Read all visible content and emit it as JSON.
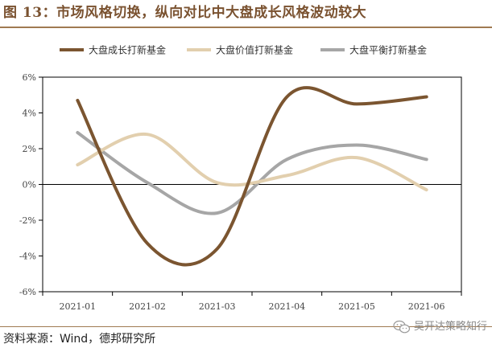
{
  "header": {
    "title": "图 13：市场风格切换，纵向对比中大盘成长风格波动较大"
  },
  "footer": {
    "source": "资料来源：Wind，德邦研究所",
    "watermark_text": "吴开达策略知行"
  },
  "chart_data": {
    "type": "line",
    "title": "",
    "xlabel": "",
    "ylabel": "",
    "categories": [
      "2021-01",
      "2021-02",
      "2021-03",
      "2021-04",
      "2021-05",
      "2021-06"
    ],
    "ylim": [
      -6,
      6
    ],
    "yticks": [
      6,
      4,
      2,
      0,
      -2,
      -4,
      -6
    ],
    "ytick_labels": [
      "6%",
      "4%",
      "2%",
      "0%",
      "-2%",
      "-4%",
      "-6%"
    ],
    "y_unit": "%",
    "smooth": true,
    "legend_position": "top",
    "grid": false,
    "series": [
      {
        "name": "大盘成长打新基金",
        "color": "#7b5530",
        "values": [
          4.7,
          -3.3,
          -3.6,
          4.9,
          4.5,
          4.9
        ]
      },
      {
        "name": "大盘价值打新基金",
        "color": "#e2cfae",
        "values": [
          1.1,
          2.8,
          0.1,
          0.5,
          1.5,
          -0.3
        ]
      },
      {
        "name": "大盘平衡打新基金",
        "color": "#a6a6a6",
        "values": [
          2.9,
          0.1,
          -1.6,
          1.4,
          2.2,
          1.4
        ]
      }
    ]
  }
}
